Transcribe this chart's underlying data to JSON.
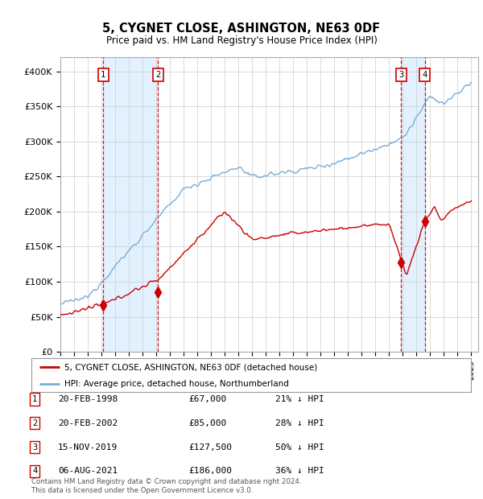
{
  "title": "5, CYGNET CLOSE, ASHINGTON, NE63 0DF",
  "subtitle": "Price paid vs. HM Land Registry's House Price Index (HPI)",
  "ylabel_ticks": [
    "£0",
    "£50K",
    "£100K",
    "£150K",
    "£200K",
    "£250K",
    "£300K",
    "£350K",
    "£400K"
  ],
  "ytick_values": [
    0,
    50000,
    100000,
    150000,
    200000,
    250000,
    300000,
    350000,
    400000
  ],
  "ylim": [
    0,
    420000
  ],
  "xlim_start": 1995.0,
  "xlim_end": 2025.5,
  "house_color": "#cc0000",
  "hpi_color": "#7aadd6",
  "shade_color": "#ddeeff",
  "marker_box_color": "#cc0000",
  "legend_house": "5, CYGNET CLOSE, ASHINGTON, NE63 0DF (detached house)",
  "legend_hpi": "HPI: Average price, detached house, Northumberland",
  "transactions": [
    {
      "num": 1,
      "date": "20-FEB-1998",
      "price": 67000,
      "pct": "21%",
      "year": 1998.13
    },
    {
      "num": 2,
      "date": "20-FEB-2002",
      "price": 85000,
      "pct": "28%",
      "year": 2002.13
    },
    {
      "num": 3,
      "date": "15-NOV-2019",
      "price": 127500,
      "pct": "50%",
      "year": 2019.88
    },
    {
      "num": 4,
      "date": "06-AUG-2021",
      "price": 186000,
      "pct": "36%",
      "year": 2021.6
    }
  ],
  "footer": "Contains HM Land Registry data © Crown copyright and database right 2024.\nThis data is licensed under the Open Government Licence v3.0."
}
